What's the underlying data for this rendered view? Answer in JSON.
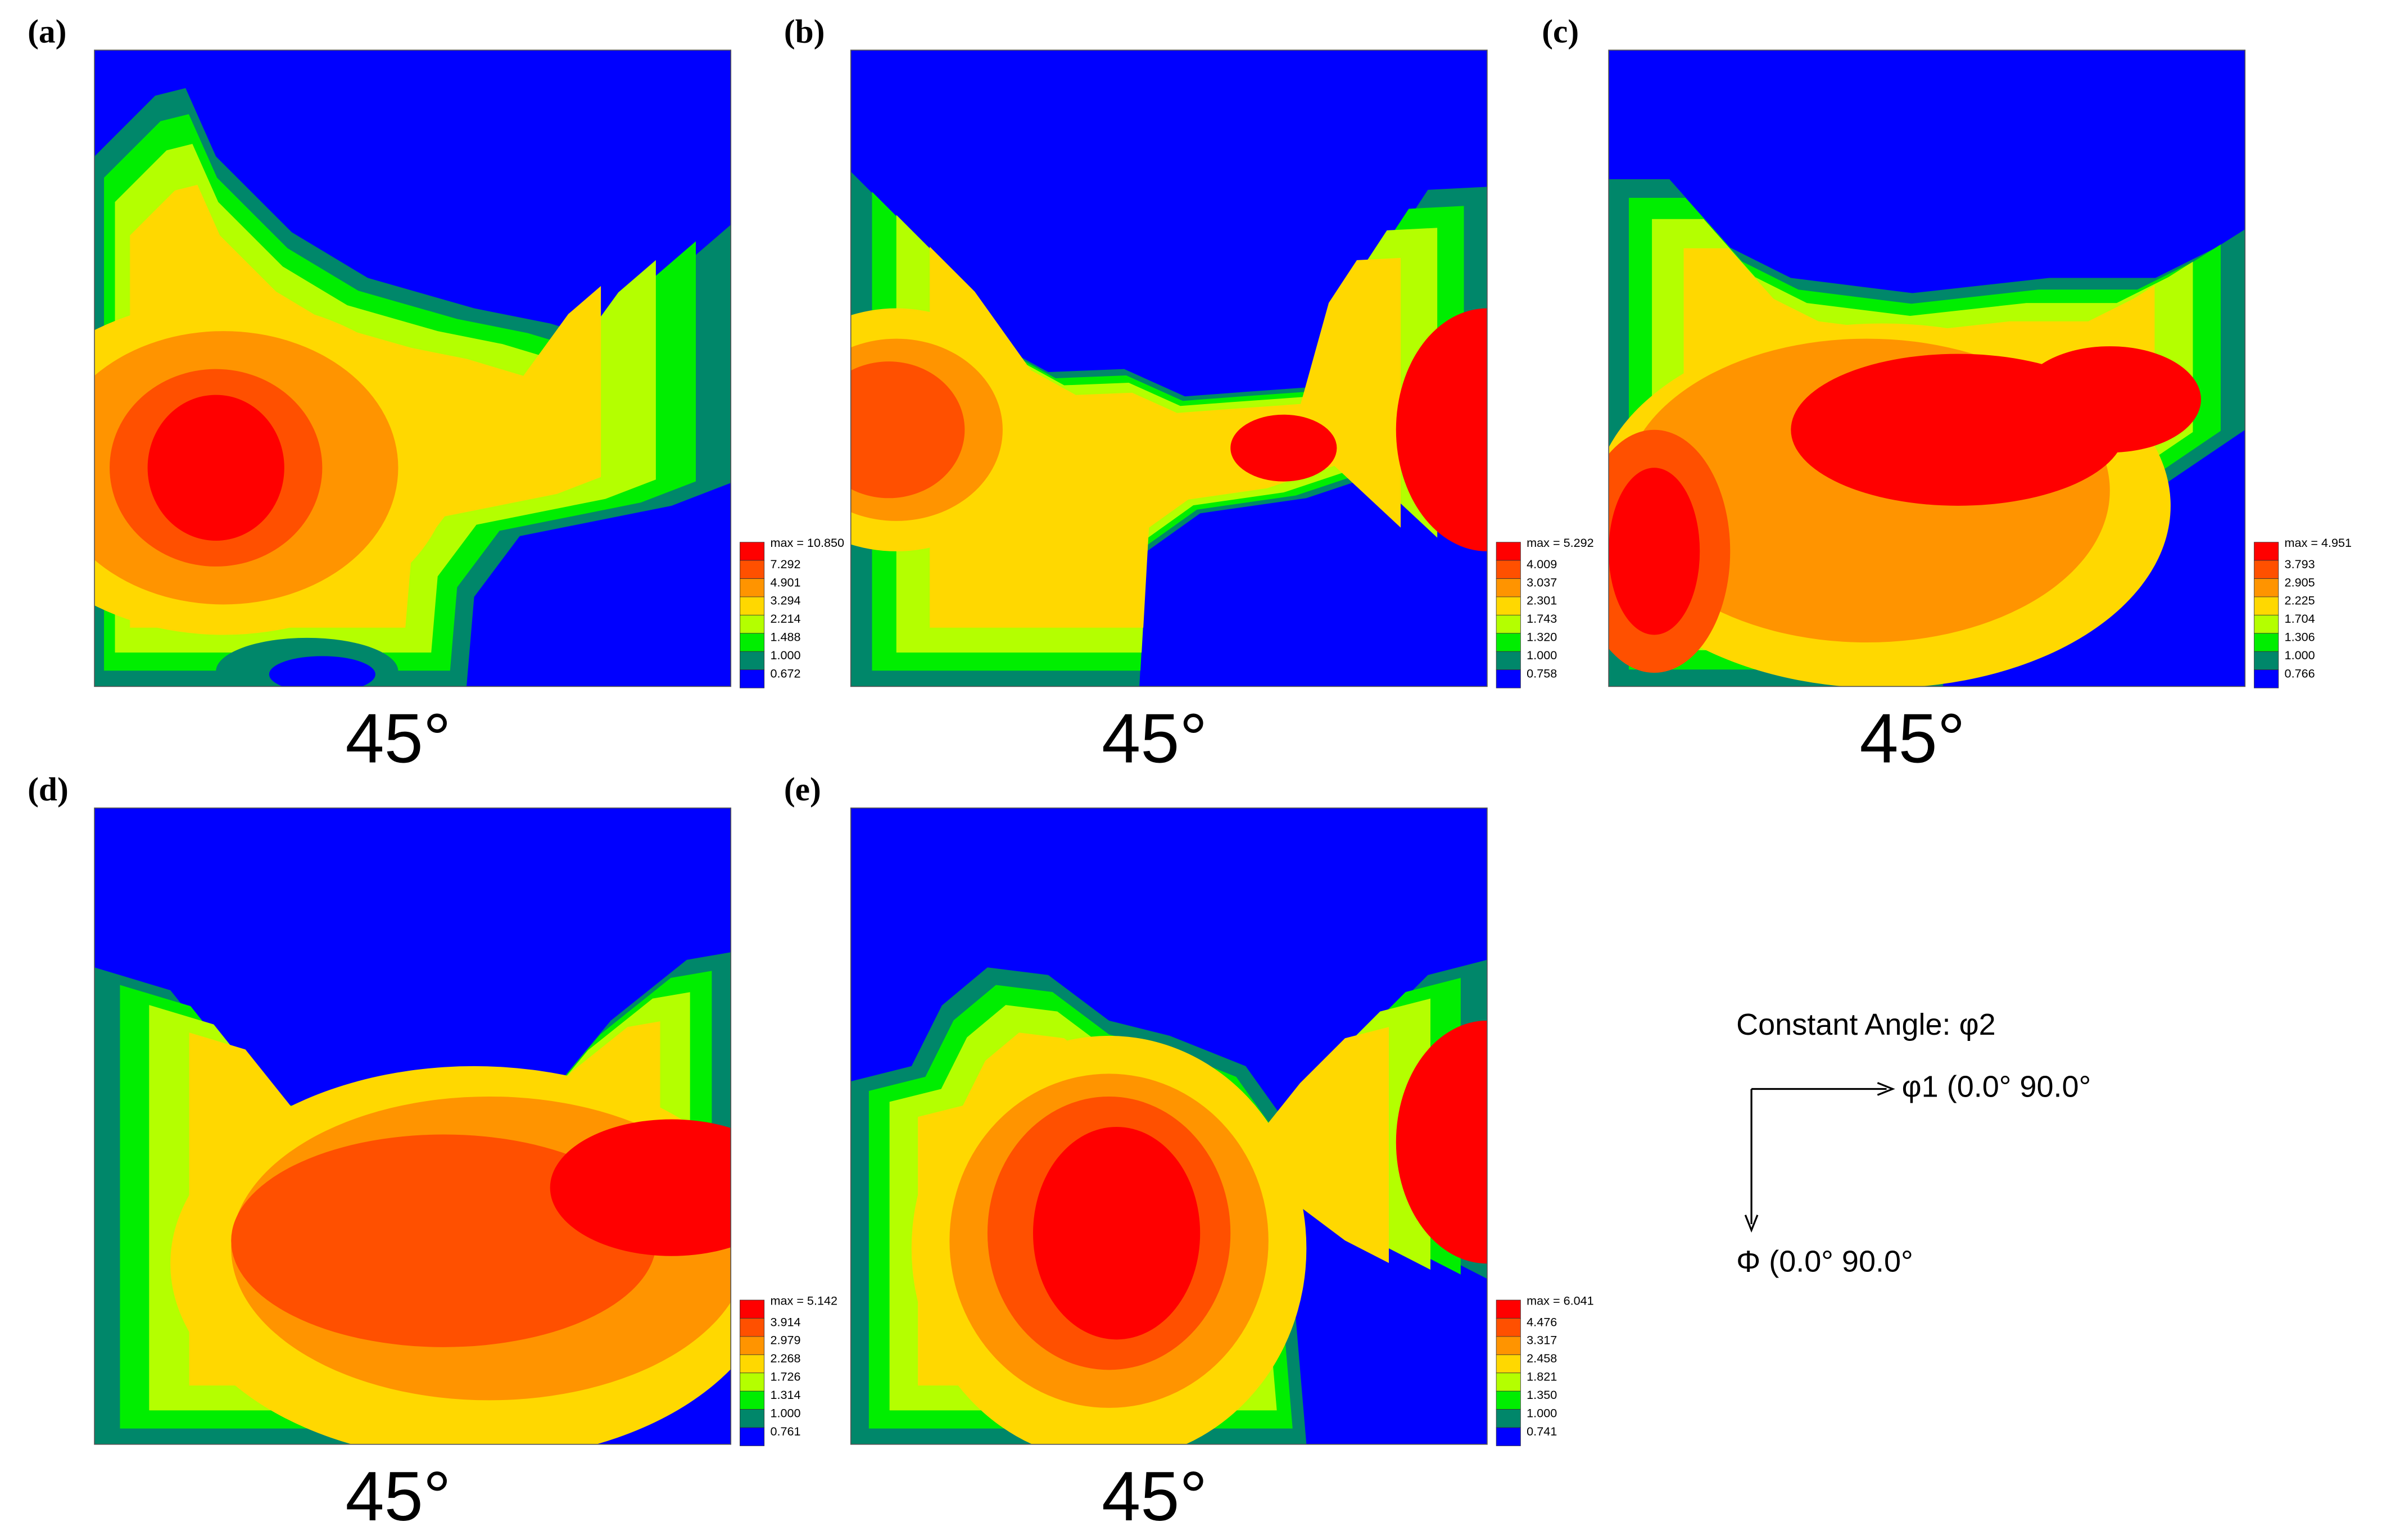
{
  "panels": [
    {
      "label": "(a)",
      "angle": "45°",
      "legend": [
        "max = 10.850",
        "7.292",
        "4.901",
        "3.294",
        "2.214",
        "1.488",
        "1.000",
        "0.672"
      ]
    },
    {
      "label": "(b)",
      "angle": "45°",
      "legend": [
        "max = 5.292",
        "4.009",
        "3.037",
        "2.301",
        "1.743",
        "1.320",
        "1.000",
        "0.758"
      ]
    },
    {
      "label": "(c)",
      "angle": "45°",
      "legend": [
        "max = 4.951",
        "3.793",
        "2.905",
        "2.225",
        "1.704",
        "1.306",
        "1.000",
        "0.766"
      ]
    },
    {
      "label": "(d)",
      "angle": "45°",
      "legend": [
        "max = 5.142",
        "3.914",
        "2.979",
        "2.268",
        "1.726",
        "1.314",
        "1.000",
        "0.761"
      ]
    },
    {
      "label": "(e)",
      "angle": "45°",
      "legend": [
        "max = 6.041",
        "4.476",
        "3.317",
        "2.458",
        "1.821",
        "1.350",
        "1.000",
        "0.741"
      ]
    }
  ],
  "key": {
    "title": "Constant Angle: φ2",
    "axis1": "φ1 (0.0° 90.0°",
    "axis2": "Φ (0.0° 90.0°"
  }
}
